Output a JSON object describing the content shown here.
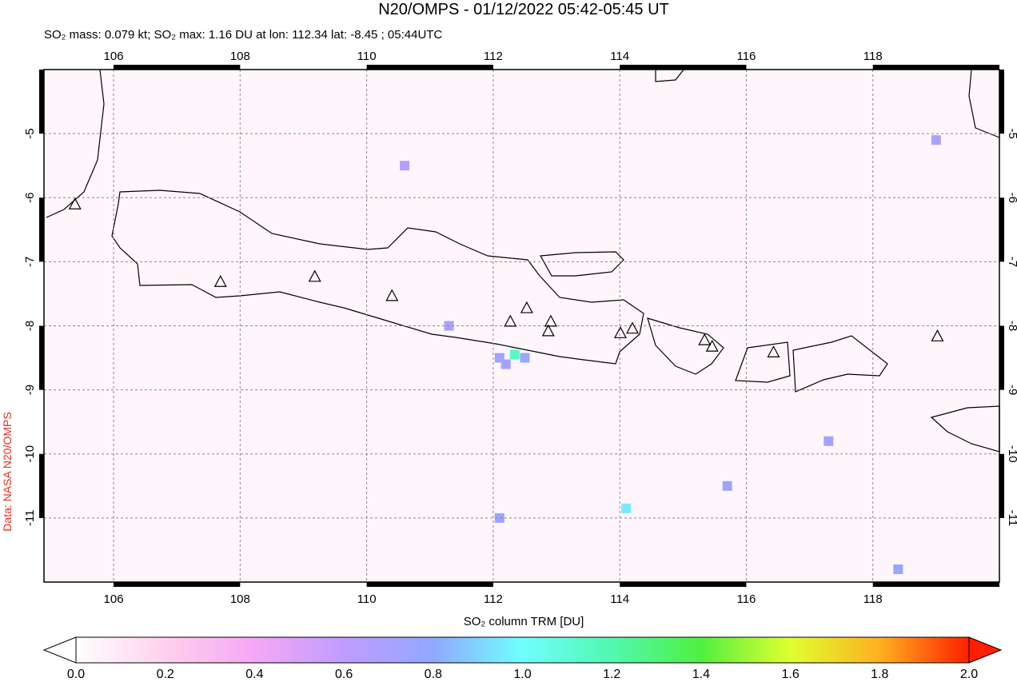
{
  "map": {
    "title": "N20/OMPS - 01/12/2022 05:42-05:45 UT",
    "subtitle": "SO₂ mass: 0.079 kt; SO₂ max: 1.16 DU at lon: 112.34 lat: -8.45 ; 05:44UTC",
    "credit": "Data: NASA N20/OMPS",
    "xlim": [
      104.9,
      120
    ],
    "ylim": [
      -12,
      -4
    ],
    "xticks": [
      106,
      108,
      110,
      112,
      114,
      116,
      118
    ],
    "yticks": [
      -5,
      -6,
      -7,
      -8,
      -9,
      -10,
      -11
    ],
    "grid": true,
    "volcanoes": [
      [
        105.39,
        -6.1
      ],
      [
        107.69,
        -7.31
      ],
      [
        109.18,
        -7.23
      ],
      [
        110.4,
        -7.53
      ],
      [
        112.27,
        -7.93
      ],
      [
        112.53,
        -7.72
      ],
      [
        112.91,
        -7.93
      ],
      [
        112.87,
        -8.08
      ],
      [
        114.01,
        -8.11
      ],
      [
        114.2,
        -8.04
      ],
      [
        115.34,
        -8.22
      ],
      [
        115.46,
        -8.32
      ],
      [
        116.43,
        -8.41
      ],
      [
        119.02,
        -8.16
      ]
    ],
    "so2_cells": [
      {
        "lon": 112.34,
        "lat": -8.45,
        "value": 1.16
      },
      {
        "lon": 112.1,
        "lat": -8.5,
        "value": 0.75
      },
      {
        "lon": 112.5,
        "lat": -8.5,
        "value": 0.78
      },
      {
        "lon": 112.2,
        "lat": -8.6,
        "value": 0.72
      },
      {
        "lon": 114.1,
        "lat": -10.85,
        "value": 0.95
      },
      {
        "lon": 112.1,
        "lat": -11.0,
        "value": 0.75
      },
      {
        "lon": 111.3,
        "lat": -8.0,
        "value": 0.7
      },
      {
        "lon": 115.7,
        "lat": -10.5,
        "value": 0.75
      },
      {
        "lon": 117.3,
        "lat": -9.8,
        "value": 0.72
      },
      {
        "lon": 119.0,
        "lat": -5.1,
        "value": 0.7
      },
      {
        "lon": 118.4,
        "lat": -11.8,
        "value": 0.8
      },
      {
        "lon": 110.6,
        "lat": -5.5,
        "value": 0.65
      }
    ],
    "colorbar": {
      "label": "SO₂ column TRM [DU]",
      "lim": [
        0,
        2
      ],
      "ticks": [
        {
          "value": 0,
          "label": "0.0"
        },
        0.2,
        0.4,
        0.6,
        0.8,
        {
          "value": 1,
          "label": "1.0"
        },
        1.2,
        1.4,
        1.6,
        1.8,
        {
          "value": 2,
          "label": "2.0"
        }
      ]
    }
  }
}
